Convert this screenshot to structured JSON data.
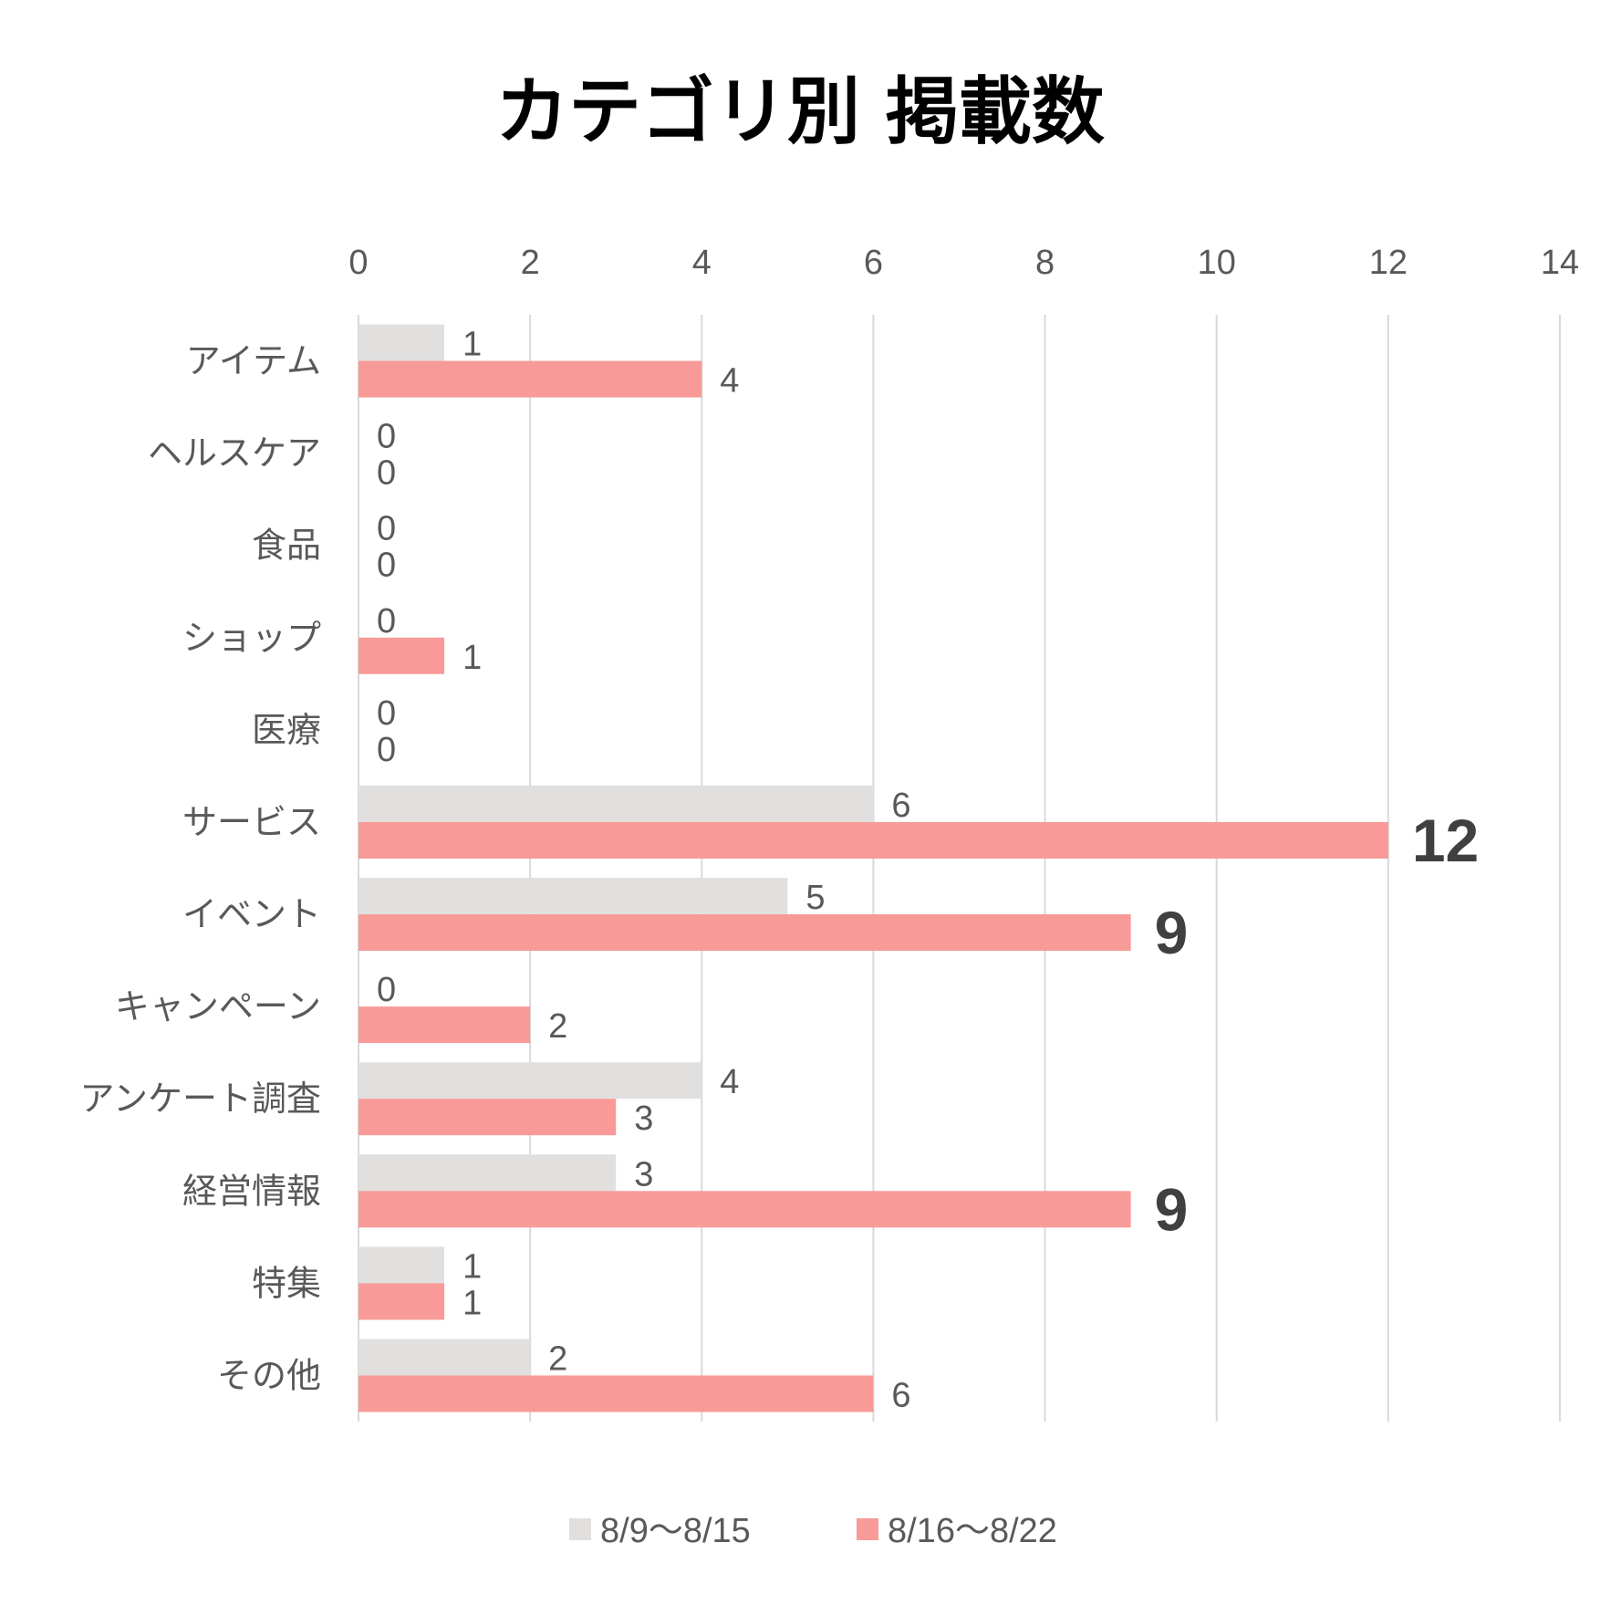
{
  "chart_data": {
    "type": "bar",
    "orientation": "horizontal",
    "title": "カテゴリ別 掲載数",
    "categories": [
      "アイテム",
      "ヘルスケア",
      "食品",
      "ショップ",
      "医療",
      "サービス",
      "イベント",
      "キャンペーン",
      "アンケート調査",
      "経営情報",
      "特集",
      "その他"
    ],
    "series": [
      {
        "name": "8/9〜8/15",
        "color": "#e2dfdf",
        "values": [
          1,
          0,
          0,
          0,
          0,
          6,
          5,
          0,
          4,
          3,
          1,
          2
        ]
      },
      {
        "name": "8/16〜8/22",
        "color": "#f89a97",
        "values": [
          4,
          0,
          0,
          1,
          0,
          12,
          9,
          2,
          3,
          9,
          1,
          6
        ]
      }
    ],
    "highlighted_labels": [
      {
        "series": 1,
        "category": "サービス"
      },
      {
        "series": 1,
        "category": "イベント"
      },
      {
        "series": 1,
        "category": "経営情報"
      }
    ],
    "xlim": [
      0,
      14
    ],
    "x_ticks": [
      "0",
      "2",
      "4",
      "6",
      "8",
      "10",
      "12",
      "14"
    ],
    "x_axis_position": "top",
    "grid": true,
    "legend": "bottom",
    "data_labels": true
  }
}
